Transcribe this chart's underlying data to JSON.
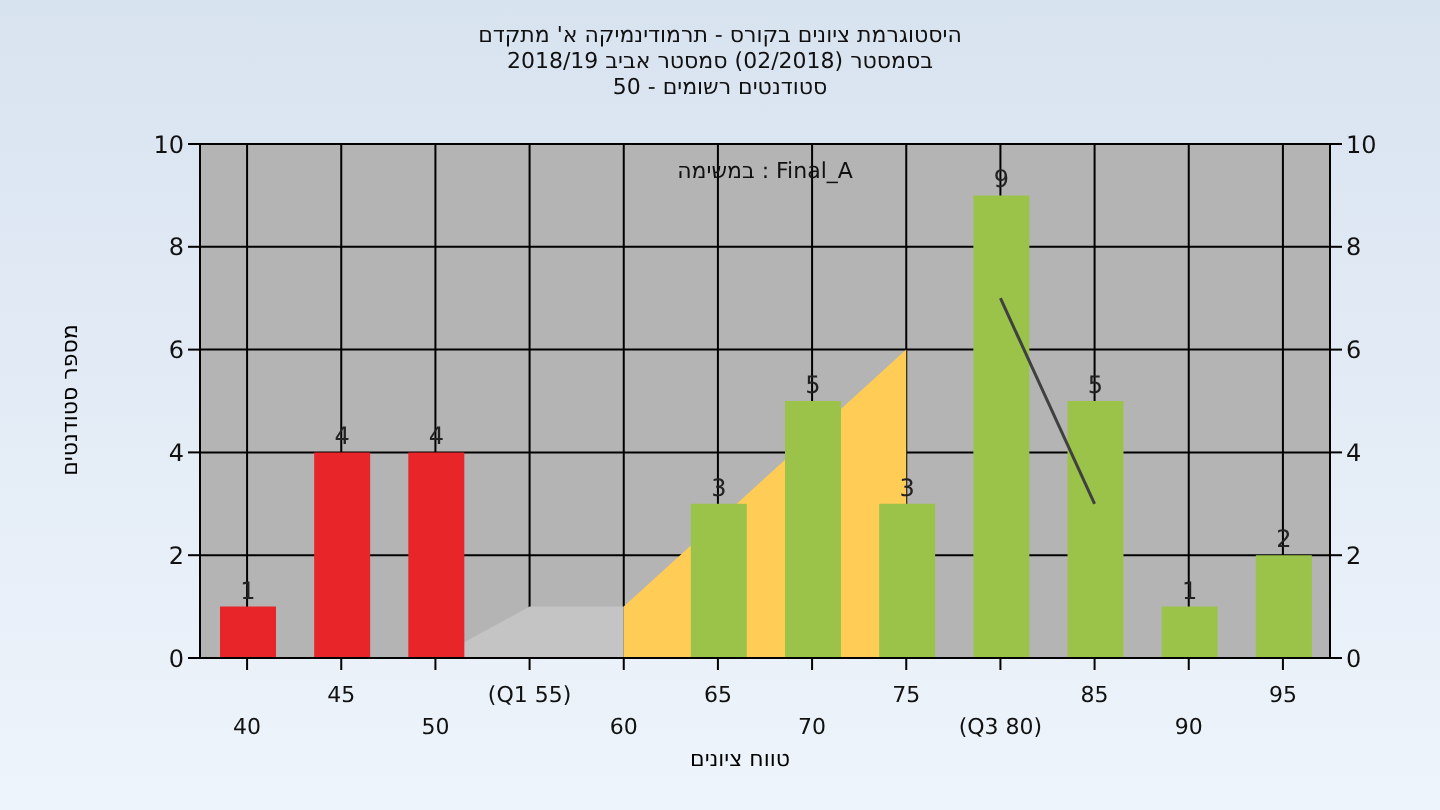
{
  "chart_data": {
    "type": "bar",
    "title": "היסטוגרמת ציונים בקורס - תרמודינמיקה א' מתקדם",
    "subtitle": "בסמסטר  (02/2018)  סמסטר אביב 2018/19\nסטודנטים רשומים - 50",
    "xlabel": "טווח ציונים",
    "ylabel": "מספר סטודנטים",
    "annotations": [
      "במשימה : Final_A"
    ],
    "categories": [
      "40",
      "45",
      "50",
      "(Q1 55)",
      "60",
      "65",
      "70",
      "75",
      "(Q3 80)",
      "85",
      "90",
      "95"
    ],
    "series": [
      {
        "type": "area",
        "color": "#c4c4c4",
        "values": [
          null,
          null,
          0,
          1,
          1,
          null,
          null,
          null,
          null,
          null,
          null,
          null
        ]
      },
      {
        "type": "area",
        "color": "#ffcc55",
        "values": [
          null,
          null,
          null,
          null,
          1,
          null,
          null,
          6,
          null,
          null,
          null,
          null
        ]
      },
      {
        "type": "line",
        "color": "#404040",
        "values": [
          null,
          null,
          null,
          null,
          null,
          null,
          null,
          null,
          7,
          3,
          null,
          null
        ]
      },
      {
        "colors": [
          "#e8262a",
          "#e8262a",
          "#e8262a",
          "#e8262a",
          "#9bc34a",
          "#9bc34a",
          "#9bc34a",
          "#9bc34a",
          "#9bc34a",
          "#9bc34a",
          "#9bc34a",
          "#9bc34a"
        ],
        "values": [
          1,
          4,
          4,
          0,
          0,
          3,
          5,
          3,
          9,
          5,
          1,
          2
        ],
        "value_labels": [
          "1",
          "4",
          "4",
          null,
          null,
          "3",
          "5",
          "3",
          "9",
          "5",
          "1",
          "2"
        ]
      }
    ],
    "ylim": [
      0,
      10
    ],
    "yticks": [
      0,
      2,
      4,
      6,
      8,
      10
    ],
    "y2lim": [
      0,
      10
    ],
    "y2ticks": [
      0,
      2,
      4,
      6,
      8,
      10
    ],
    "grid": true
  }
}
